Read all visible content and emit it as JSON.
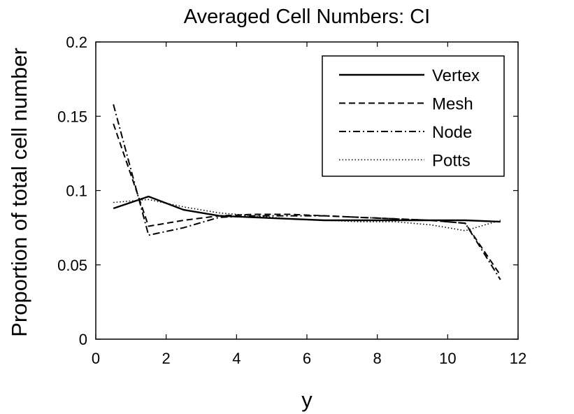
{
  "chart_data": {
    "type": "line",
    "title": "Averaged Cell Numbers: CI",
    "xlabel": "y",
    "ylabel": "Proportion of total cell number",
    "xlim": [
      0,
      12
    ],
    "ylim": [
      0,
      0.2
    ],
    "x_ticks": [
      "0",
      "2",
      "4",
      "6",
      "8",
      "10",
      "12"
    ],
    "y_ticks": [
      "0",
      "0.05",
      "0.1",
      "0.15",
      "0.2"
    ],
    "grid": false,
    "legend_position": "top-right",
    "series": [
      {
        "name": "Vertex",
        "style": "solid",
        "x": [
          0.5,
          1.5,
          2.5,
          3.5,
          4.5,
          5.5,
          6.5,
          7.5,
          8.5,
          9.5,
          10.5,
          11.5
        ],
        "y": [
          0.088,
          0.096,
          0.087,
          0.083,
          0.082,
          0.081,
          0.08,
          0.08,
          0.08,
          0.08,
          0.08,
          0.079
        ]
      },
      {
        "name": "Mesh",
        "style": "dashed",
        "x": [
          0.5,
          1.5,
          2.5,
          3.5,
          4.5,
          5.5,
          6.5,
          7.5,
          8.5,
          9.5,
          10.5,
          11.5
        ],
        "y": [
          0.145,
          0.076,
          0.08,
          0.083,
          0.084,
          0.084,
          0.083,
          0.082,
          0.081,
          0.08,
          0.078,
          0.043
        ]
      },
      {
        "name": "Node",
        "style": "dashdot",
        "x": [
          0.5,
          1.5,
          2.5,
          3.5,
          4.5,
          5.5,
          6.5,
          7.5,
          8.5,
          9.5,
          10.5,
          11.5
        ],
        "y": [
          0.158,
          0.07,
          0.075,
          0.082,
          0.083,
          0.083,
          0.083,
          0.082,
          0.081,
          0.08,
          0.078,
          0.04
        ]
      },
      {
        "name": "Potts",
        "style": "dotted",
        "x": [
          0.5,
          1.5,
          2.5,
          3.5,
          4.5,
          5.5,
          6.5,
          7.5,
          8.5,
          9.5,
          10.5,
          11.5
        ],
        "y": [
          0.092,
          0.094,
          0.089,
          0.085,
          0.083,
          0.081,
          0.08,
          0.079,
          0.079,
          0.077,
          0.073,
          0.08
        ]
      }
    ]
  }
}
